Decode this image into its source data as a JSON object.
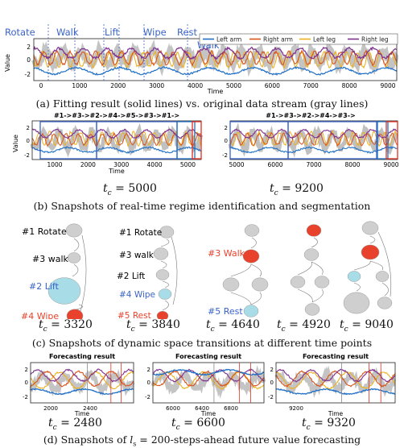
{
  "panel_a": {
    "caption": "(a) Fitting result (solid lines) vs. original data stream (gray lines)",
    "regime_labels": [
      "Rotate",
      "Walk",
      "Lift",
      "Wipe",
      "Rest",
      "Walk"
    ],
    "legend": [
      "Left arm",
      "Right arm",
      "Left leg",
      "Right leg"
    ],
    "xlabel": "Time",
    "ylabel": "Value",
    "xticks": [
      "0",
      "1000",
      "2000",
      "3000",
      "4000",
      "5000",
      "6000",
      "7000",
      "8000",
      "9000"
    ],
    "yticks": [
      "2",
      "0",
      "-2"
    ]
  },
  "panel_b": {
    "caption": "(b) Snapshots of real-time regime identification and segmentation",
    "left": {
      "sequence": "#1->#3->#2->#4->#5->#3->#1->",
      "ylabel": "Value",
      "xlabel": "Time",
      "xticks": [
        "1000",
        "2000",
        "3000",
        "4000",
        "5000"
      ],
      "yticks": [
        "2",
        "0",
        "-2"
      ],
      "tc": "t",
      "tc_sub": "c",
      "tc_val": "= 5000"
    },
    "right": {
      "sequence": "#1->#3->#2->#4->#3->",
      "xticks": [
        "5000",
        "6000",
        "7000",
        "8000",
        "9000"
      ],
      "yticks": [
        "2",
        "0",
        "-2"
      ],
      "tc": "t",
      "tc_sub": "c",
      "tc_val": "= 9200"
    }
  },
  "panel_c": {
    "caption": "(c) Snapshots of dynamic space transitions at different time points",
    "g1": {
      "labels": [
        "#1 Rotate",
        "#3 walk",
        "#2 Lift",
        "#4 Wipe"
      ],
      "tc_val": "= 3320"
    },
    "g2": {
      "labels": [
        "#1 Rotate",
        "#3 walk",
        "#2 Lift",
        "#4 Wipe",
        "#5 Rest"
      ],
      "tc_val": "= 3840"
    },
    "g3": {
      "labels": [
        "#3 Walk",
        "#5 Rest"
      ],
      "tc_val": "= 4640"
    },
    "g4": {
      "tc_val": "= 4920"
    },
    "g5": {
      "tc_val": "= 9040"
    }
  },
  "panel_d": {
    "caption": "(d) Snapshots of l_s = 200-steps-ahead future value forecasting",
    "caption_pre": "(d) Snapshots of ",
    "caption_ls": "l",
    "caption_ls_sub": "s",
    "caption_post": " = 200-steps-ahead future value forecasting",
    "plots": [
      {
        "title": "Forecasting result",
        "xlabel": "Time",
        "xticks": [
          "2000",
          "2400"
        ],
        "yticks": [
          "2",
          "0",
          "-2"
        ],
        "tc_val": "= 2480"
      },
      {
        "title": "Forecasting result",
        "xlabel": "Time",
        "xticks": [
          "6000",
          "6400",
          "6800"
        ],
        "yticks": [
          "2",
          "0",
          "-2"
        ],
        "tc_val": "= 6600"
      },
      {
        "title": "Forecasting result",
        "xlabel": "Time",
        "xticks": [
          "9200"
        ],
        "yticks": [
          "2",
          "0",
          "-2"
        ],
        "tc_val": "= 9320"
      }
    ]
  },
  "colors": {
    "left_arm": "#1f6fc5",
    "right_arm": "#d95319",
    "left_leg": "#edb120",
    "right_leg": "#7e2f8e",
    "gray": "#b5b5b5",
    "regime_blue": "#3a63c8",
    "node_red": "#e8412c",
    "node_cyan": "#a8dde8",
    "node_gray": "#cfcfcf"
  }
}
